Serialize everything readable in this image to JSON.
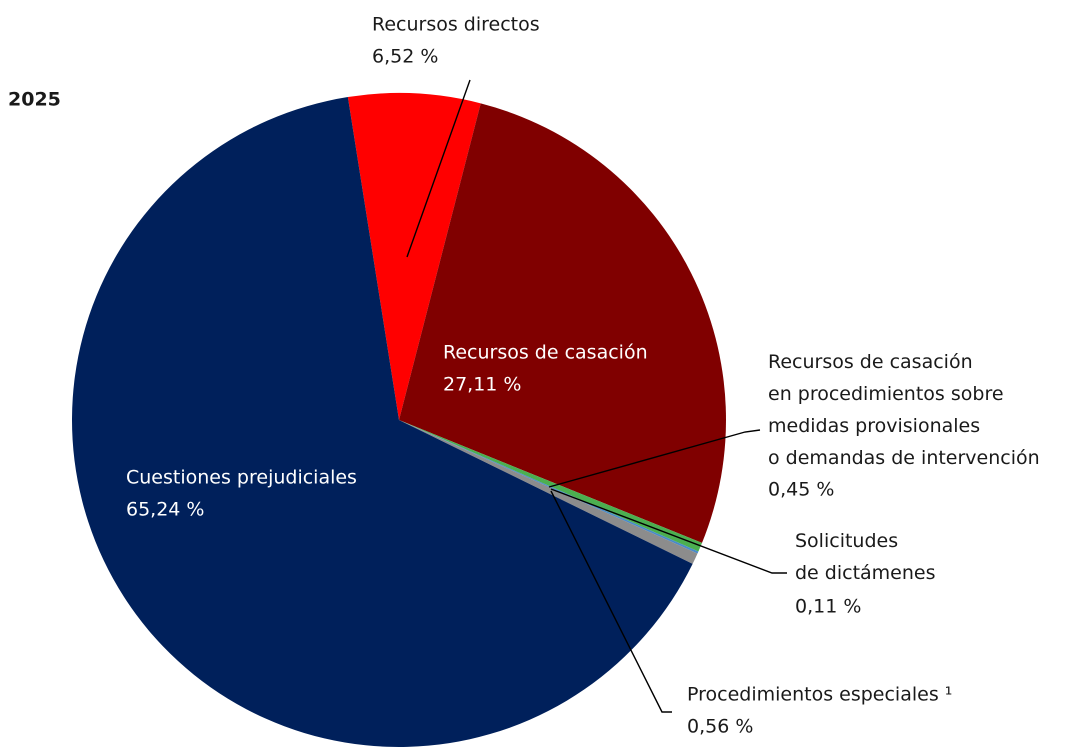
{
  "chart_data": {
    "type": "pie",
    "title": "2025",
    "categories": [
      "Recursos directos",
      "Recursos de casación",
      "Recursos de casación\nen procedimientos sobre\nmedidas provisionales\no demandas de intervención",
      "Solicitudes\nde dictámenes",
      "Procedimientos especiales  ¹",
      "Cuestiones prejudiciales"
    ],
    "values": [
      6.52,
      27.11,
      0.45,
      0.11,
      0.56,
      65.24
    ],
    "value_labels": [
      "6,52 %",
      "27,11 %",
      "0,45 %",
      "0,11 %",
      "0,56 %",
      "65,24 %"
    ],
    "colors": [
      "#ff0000",
      "#800000",
      "#4caf50",
      "#4a8bc9",
      "#8c8c8c",
      "#00205b"
    ]
  }
}
